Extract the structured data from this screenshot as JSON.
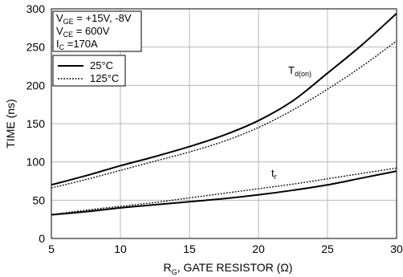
{
  "chart_data": {
    "type": "line",
    "xlabel": {
      "main": "R",
      "sub": "G",
      "rest": ", GATE RESISTOR (Ω)"
    },
    "ylabel": "TIME (ns)",
    "xlim": [
      5,
      30
    ],
    "ylim": [
      0,
      300
    ],
    "xticks": [
      "5",
      "10",
      "15",
      "20",
      "25",
      "30"
    ],
    "yticks": [
      "0",
      "50",
      "100",
      "150",
      "200",
      "250",
      "300"
    ],
    "grid": true,
    "conditions": [
      {
        "main": "V",
        "sub": "GE",
        "rest": " = +15V, -8V"
      },
      {
        "main": "V",
        "sub": "CE",
        "rest": " = 600V"
      },
      {
        "main": "I",
        "sub": "C",
        "rest": " =170A"
      }
    ],
    "legend": [
      {
        "label": "25°C",
        "style": "solid"
      },
      {
        "label": "125°C",
        "style": "dotted"
      }
    ],
    "curve_labels": [
      {
        "main": "T",
        "sub": "d(on)"
      },
      {
        "main": "t",
        "sub": "r"
      }
    ],
    "series": [
      {
        "curve": "Td(on)",
        "temperature": "25°C",
        "style": "solid",
        "x": [
          5,
          7.5,
          10,
          12.5,
          15,
          17.5,
          20,
          22.5,
          25,
          27.5,
          30
        ],
        "y": [
          70,
          82,
          95,
          107,
          120,
          135,
          154,
          180,
          216,
          253,
          294
        ]
      },
      {
        "curve": "Td(on)",
        "temperature": "125°C",
        "style": "dotted",
        "x": [
          5,
          7.5,
          10,
          12.5,
          15,
          17.5,
          20,
          22.5,
          25,
          27.5,
          30
        ],
        "y": [
          66,
          77,
          89,
          101,
          113,
          127,
          145,
          168,
          195,
          225,
          258
        ]
      },
      {
        "curve": "tr",
        "temperature": "25°C",
        "style": "solid",
        "x": [
          5,
          7.5,
          10,
          12.5,
          15,
          17.5,
          20,
          22.5,
          25,
          27.5,
          30
        ],
        "y": [
          31,
          35,
          40,
          44,
          48,
          52,
          57,
          63,
          70,
          79,
          88
        ]
      },
      {
        "curve": "tr",
        "temperature": "125°C",
        "style": "dotted",
        "x": [
          5,
          7.5,
          10,
          12.5,
          15,
          17.5,
          20,
          22.5,
          25,
          27.5,
          30
        ],
        "y": [
          31,
          37,
          42,
          47,
          53,
          59,
          65,
          71,
          78,
          85,
          92
        ]
      }
    ]
  }
}
